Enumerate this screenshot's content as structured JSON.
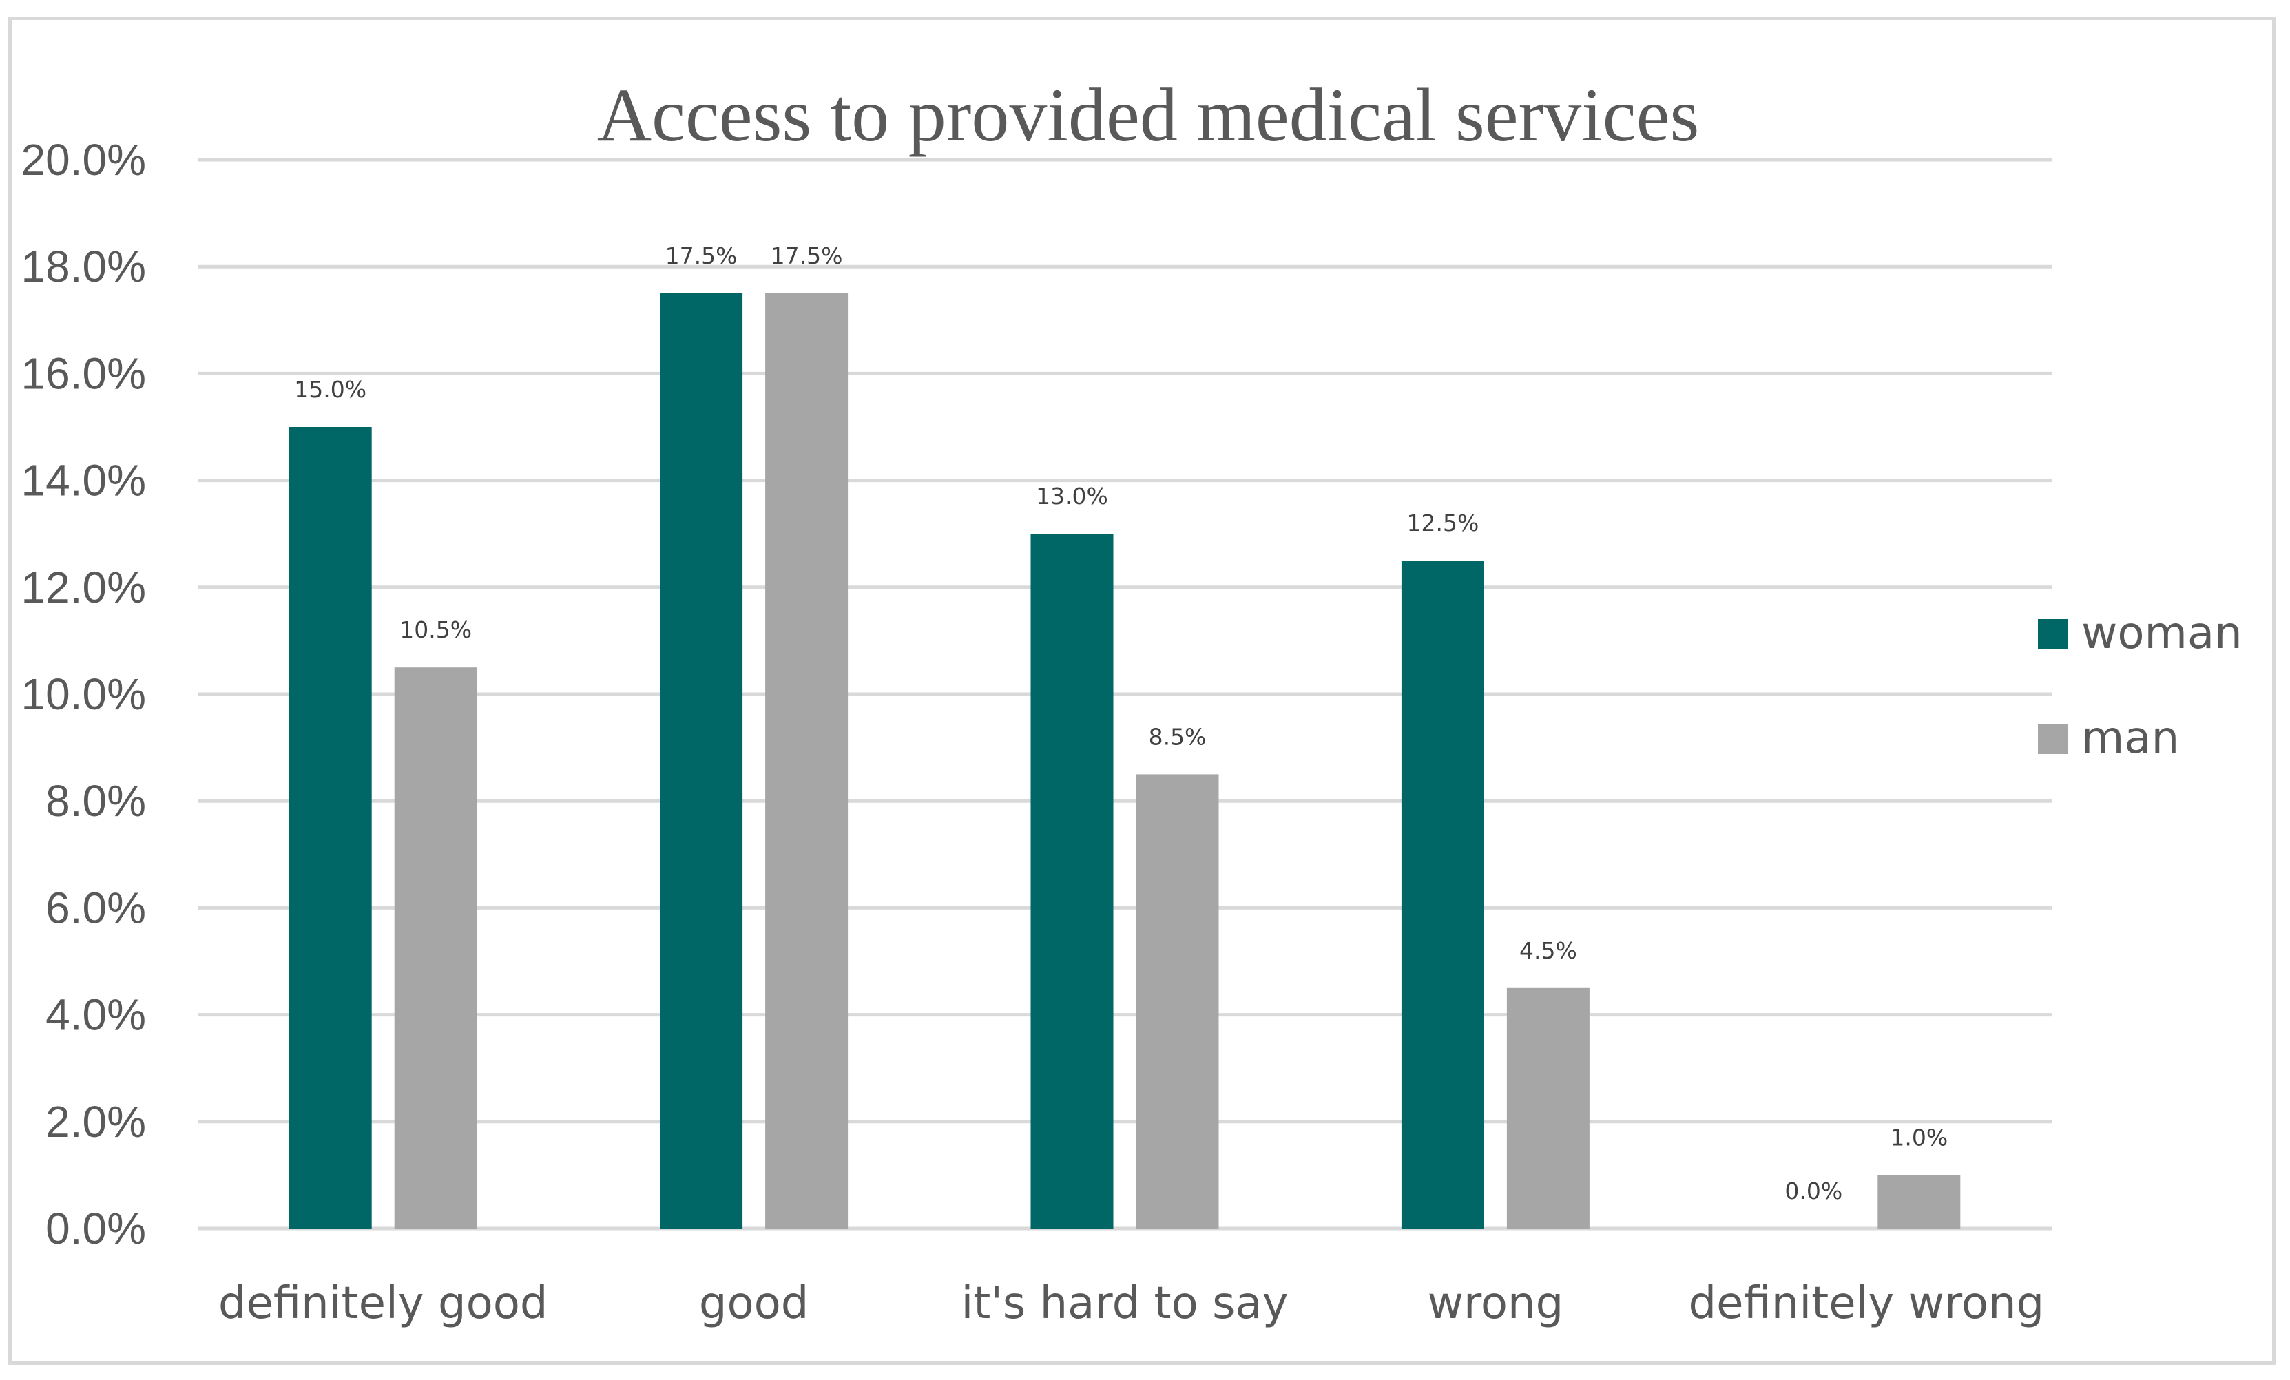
{
  "chart_data": {
    "type": "bar",
    "title": "Access to provided medical services",
    "xlabel": "",
    "ylabel": "",
    "ylim": [
      0,
      20
    ],
    "y_ticks": [
      "0.0%",
      "2.0%",
      "4.0%",
      "6.0%",
      "8.0%",
      "10.0%",
      "12.0%",
      "14.0%",
      "16.0%",
      "18.0%",
      "20.0%"
    ],
    "categories": [
      "definitely good",
      "good",
      "it's hard to say",
      "wrong",
      "definitely wrong"
    ],
    "series": [
      {
        "name": "woman",
        "color": "#006666",
        "values": [
          15.0,
          17.5,
          13.0,
          12.5,
          0.0
        ],
        "labels": [
          "15.0%",
          "17.5%",
          "13.0%",
          "12.5%",
          "0.0%"
        ]
      },
      {
        "name": "man",
        "color": "#a6a6a6",
        "values": [
          10.5,
          17.5,
          8.5,
          4.5,
          1.0
        ],
        "labels": [
          "10.5%",
          "17.5%",
          "8.5%",
          "4.5%",
          "1.0%"
        ]
      }
    ],
    "grid": true,
    "legend_position": "right"
  }
}
